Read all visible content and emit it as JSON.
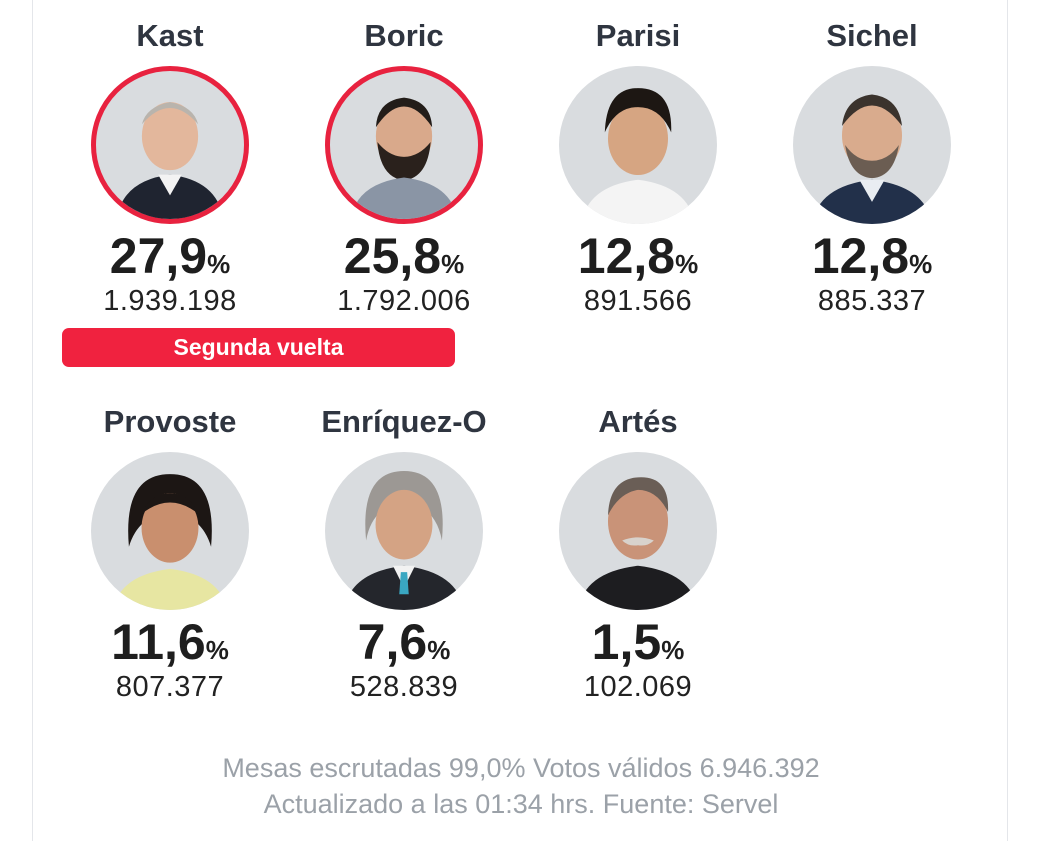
{
  "candidates": [
    {
      "name": "Kast",
      "percent": "27,9",
      "votes": "1.939.198",
      "winner": true
    },
    {
      "name": "Boric",
      "percent": "25,8",
      "votes": "1.792.006",
      "winner": true
    },
    {
      "name": "Parisi",
      "percent": "12,8",
      "votes": "891.566",
      "winner": false
    },
    {
      "name": "Sichel",
      "percent": "12,8",
      "votes": "885.337",
      "winner": false
    },
    {
      "name": "Provoste",
      "percent": "11,6",
      "votes": "807.377",
      "winner": false
    },
    {
      "name": "Enríquez-O",
      "percent": "7,6",
      "votes": "528.839",
      "winner": false
    },
    {
      "name": "Artés",
      "percent": "1,5",
      "votes": "102.069",
      "winner": false
    }
  ],
  "percent_sign": "%",
  "runoff_label": "Segunda vuelta",
  "footer": {
    "line1": "Mesas escrutadas 99,0% Votos válidos 6.946.392",
    "line2": "Actualizado a las 01:34 hrs. Fuente: Servel"
  },
  "colors": {
    "accent": "#f0223f",
    "winner_ring": "#e8223f",
    "footer_text": "#9ba1a8"
  }
}
